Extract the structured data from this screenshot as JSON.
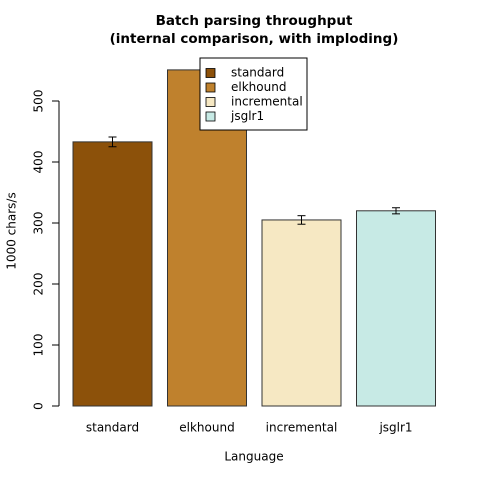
{
  "chart_data": {
    "type": "bar",
    "title": "Batch parsing throughput",
    "subtitle": "(internal comparison, with imploding)",
    "x_label": "Language",
    "y_label": "1000 chars/s",
    "categories": [
      "standard",
      "elkhound",
      "incremental",
      "jsglr1"
    ],
    "values": [
      433,
      551,
      305,
      320
    ],
    "errors": [
      8,
      11,
      7,
      5
    ],
    "colors": [
      "#8c510a",
      "#bf812d",
      "#f6e8c3",
      "#c7eae5"
    ],
    "ylim": [
      0,
      560
    ],
    "yticks": [
      0,
      100,
      200,
      300,
      400,
      500
    ],
    "legend": "top"
  }
}
